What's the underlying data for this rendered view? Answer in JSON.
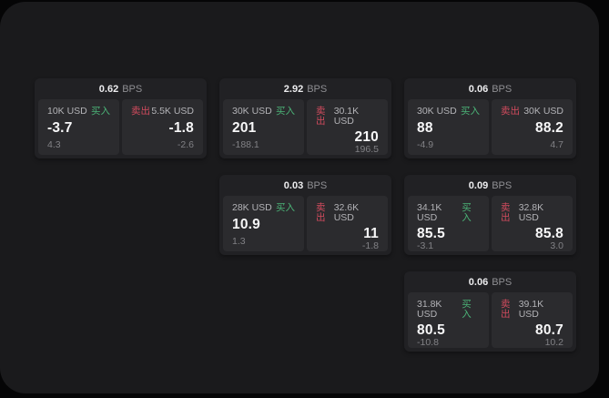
{
  "labels": {
    "bps": "BPS",
    "buy": "买入",
    "sell": "卖出"
  },
  "colors": {
    "buy": "#4bb377",
    "sell": "#d24b5e",
    "panel_bg": "#1a1a1c",
    "card_bg": "#212124",
    "pane_bg": "#2b2b2e"
  },
  "cards": [
    {
      "row": 1,
      "col": 1,
      "bps": "0.62",
      "buy": {
        "amount": "10K USD",
        "value": "-3.7",
        "delta": "4.3"
      },
      "sell": {
        "amount": "5.5K USD",
        "value": "-1.8",
        "delta": "-2.6"
      }
    },
    {
      "row": 1,
      "col": 2,
      "bps": "2.92",
      "buy": {
        "amount": "30K USD",
        "value": "201",
        "delta": "-188.1"
      },
      "sell": {
        "amount": "30.1K USD",
        "value": "210",
        "delta": "196.5"
      }
    },
    {
      "row": 1,
      "col": 3,
      "bps": "0.06",
      "buy": {
        "amount": "30K USD",
        "value": "88",
        "delta": "-4.9"
      },
      "sell": {
        "amount": "30K USD",
        "value": "88.2",
        "delta": "4.7"
      }
    },
    {
      "row": 2,
      "col": 2,
      "bps": "0.03",
      "buy": {
        "amount": "28K USD",
        "value": "10.9",
        "delta": "1.3"
      },
      "sell": {
        "amount": "32.6K USD",
        "value": "11",
        "delta": "-1.8"
      }
    },
    {
      "row": 2,
      "col": 3,
      "bps": "0.09",
      "buy": {
        "amount": "34.1K USD",
        "value": "85.5",
        "delta": "-3.1"
      },
      "sell": {
        "amount": "32.8K USD",
        "value": "85.8",
        "delta": "3.0"
      }
    },
    {
      "row": 3,
      "col": 3,
      "bps": "0.06",
      "buy": {
        "amount": "31.8K USD",
        "value": "80.5",
        "delta": "-10.8"
      },
      "sell": {
        "amount": "39.1K USD",
        "value": "80.7",
        "delta": "10.2"
      }
    }
  ]
}
